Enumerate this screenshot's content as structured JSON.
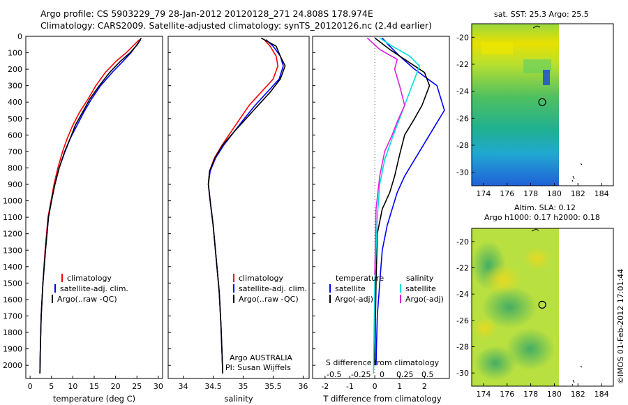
{
  "header": {
    "line1": "Argo profile: CS 5903229_79 28-Jan-2012 20120128_271 24.808S 178.974E",
    "line2": "Climatology: CARS2009. Satellite-adjusted climatology: synTS_20120126.nc (2.4d earlier)"
  },
  "colors": {
    "climatology": "#ff0000",
    "satellite": "#0000ff",
    "argo": "#000000",
    "salinity_satellite": "#00e0e0",
    "salinity_argo": "#e020e0"
  },
  "chart_data": [
    {
      "id": "temperature",
      "type": "line",
      "xlabel": "temperature (deg C)",
      "xlim": [
        -1,
        31
      ],
      "ylim": [
        2080,
        0
      ],
      "xticks": [
        0,
        5,
        10,
        15,
        20,
        25,
        30
      ],
      "yticks": [
        0,
        100,
        200,
        300,
        400,
        500,
        600,
        700,
        800,
        900,
        1000,
        1100,
        1200,
        1300,
        1400,
        1500,
        1600,
        1700,
        1800,
        1900,
        2000
      ],
      "legend": [
        "climatology",
        "satellite-adj. clim.",
        "Argo(..raw -QC)"
      ],
      "series": [
        {
          "name": "climatology",
          "color": "#ff0000",
          "x": [
            25.6,
            24.4,
            22.5,
            20.2,
            17.6,
            15.4,
            13.6,
            11.6,
            10.0,
            8.7,
            7.6,
            6.5,
            5.6,
            4.9,
            4.2,
            3.5,
            3.0,
            2.6,
            2.4,
            2.3
          ],
          "y": [
            20,
            50,
            100,
            150,
            220,
            300,
            380,
            460,
            540,
            620,
            700,
            800,
            900,
            1000,
            1100,
            1300,
            1500,
            1700,
            1900,
            2050
          ]
        },
        {
          "name": "satellite-adj. clim.",
          "color": "#0000ff",
          "x": [
            25.9,
            25.0,
            23.6,
            21.8,
            19.2,
            16.5,
            14.4,
            12.6,
            11.0,
            9.4,
            8.2,
            6.8,
            5.8,
            5.0,
            4.3,
            3.6,
            3.0,
            2.6,
            2.4,
            2.3
          ],
          "y": [
            20,
            50,
            100,
            150,
            220,
            300,
            380,
            460,
            540,
            620,
            700,
            800,
            900,
            1000,
            1100,
            1300,
            1500,
            1700,
            1900,
            2050
          ]
        },
        {
          "name": "Argo(..raw -QC)",
          "color": "#000000",
          "x": [
            26.0,
            25.1,
            23.4,
            21.2,
            18.6,
            16.2,
            14.0,
            12.3,
            10.6,
            9.4,
            8.1,
            6.8,
            5.8,
            5.0,
            4.3,
            3.6,
            3.0,
            2.6,
            2.4,
            2.3
          ],
          "y": [
            10,
            50,
            100,
            150,
            220,
            300,
            380,
            460,
            540,
            620,
            700,
            800,
            900,
            1000,
            1100,
            1300,
            1500,
            1700,
            1900,
            2050
          ]
        }
      ]
    },
    {
      "id": "salinity",
      "type": "line",
      "xlabel": "salinity",
      "xlim": [
        33.75,
        36.1
      ],
      "ylim": [
        2080,
        0
      ],
      "xticks": [
        34,
        34.5,
        35,
        35.5,
        36
      ],
      "legend": [
        "climatology",
        "satellite-adj. clim.",
        "Argo(..raw -QC)"
      ],
      "annotations": [
        "Argo AUSTRALIA",
        "PI: Susan Wijffels"
      ],
      "series": [
        {
          "name": "climatology",
          "color": "#ff0000",
          "x": [
            35.35,
            35.45,
            35.55,
            35.58,
            35.5,
            35.3,
            35.1,
            34.95,
            34.8,
            34.65,
            34.52,
            34.44,
            34.42,
            34.45,
            34.5,
            34.55,
            34.6,
            34.63,
            34.65,
            34.66
          ],
          "y": [
            20,
            60,
            120,
            180,
            260,
            340,
            420,
            500,
            580,
            660,
            740,
            820,
            900,
            1000,
            1150,
            1350,
            1550,
            1750,
            1950,
            2050
          ]
        },
        {
          "name": "satellite-adj. clim.",
          "color": "#0000ff",
          "x": [
            35.38,
            35.5,
            35.62,
            35.67,
            35.6,
            35.4,
            35.2,
            35.02,
            34.85,
            34.68,
            34.54,
            34.45,
            34.42,
            34.45,
            34.5,
            34.55,
            34.6,
            34.63,
            34.65,
            34.66
          ],
          "y": [
            20,
            60,
            120,
            180,
            260,
            340,
            420,
            500,
            580,
            660,
            740,
            820,
            900,
            1000,
            1150,
            1350,
            1550,
            1750,
            1950,
            2050
          ]
        },
        {
          "name": "Argo(..raw -QC)",
          "color": "#000000",
          "x": [
            35.3,
            35.55,
            35.62,
            35.7,
            35.62,
            35.45,
            35.25,
            35.05,
            34.85,
            34.66,
            34.53,
            34.44,
            34.42,
            34.45,
            34.5,
            34.55,
            34.6,
            34.63,
            34.65,
            34.66
          ],
          "y": [
            10,
            60,
            120,
            180,
            260,
            340,
            420,
            500,
            580,
            660,
            740,
            820,
            900,
            1000,
            1150,
            1350,
            1550,
            1750,
            1950,
            2050
          ]
        }
      ]
    },
    {
      "id": "difference",
      "type": "line",
      "xlabel": "T difference from climatology",
      "xlabel_top": "S difference from climatology",
      "xlim": [
        -2.5,
        3.0
      ],
      "ylim": [
        2080,
        0
      ],
      "xticks": [
        -2,
        -1,
        0,
        1,
        2
      ],
      "xticks_s": [
        "-0.5",
        "-0.25",
        "0",
        "0.25",
        "0.5"
      ],
      "legend_headers": [
        "temperature",
        "salinity"
      ],
      "legend": [
        "satellite",
        "Argo(-adj)",
        "satellite",
        "Argo(-adj)"
      ],
      "series": [
        {
          "name": "temperature satellite",
          "color": "#0000ff",
          "x": [
            0.3,
            0.6,
            1.0,
            1.6,
            2.5,
            2.8,
            2.4,
            2.0,
            1.6,
            1.2,
            0.9,
            0.7,
            0.5,
            0.3,
            0.2,
            0.1,
            0.05
          ],
          "y": [
            10,
            60,
            120,
            200,
            300,
            450,
            550,
            650,
            750,
            850,
            950,
            1050,
            1150,
            1300,
            1500,
            1700,
            2000
          ]
        },
        {
          "name": "temperature Argo(-adj)",
          "color": "#000000",
          "x": [
            0.0,
            0.6,
            1.3,
            2.0,
            2.2,
            1.9,
            1.6,
            1.2,
            1.0,
            0.8,
            0.6,
            0.3,
            0.1,
            0.05,
            0.0
          ],
          "y": [
            10,
            80,
            150,
            220,
            300,
            420,
            500,
            600,
            720,
            850,
            950,
            1050,
            1200,
            1500,
            2000
          ]
        },
        {
          "name": "salinity satellite",
          "color": "#00e0e0",
          "x": [
            0.2,
            0.7,
            1.4,
            1.8,
            1.6,
            1.3,
            1.0,
            0.7,
            0.4,
            0.2,
            0.1,
            0.0,
            -0.05
          ],
          "y": [
            10,
            60,
            120,
            180,
            260,
            380,
            500,
            620,
            750,
            900,
            1100,
            1500,
            2050
          ]
        },
        {
          "name": "salinity Argo(-adj)",
          "color": "#e020e0",
          "x": [
            -0.3,
            0.2,
            0.9,
            0.8,
            1.0,
            1.2,
            0.9,
            0.7,
            0.4,
            0.2,
            0.05,
            0.0
          ],
          "y": [
            10,
            80,
            140,
            200,
            300,
            420,
            520,
            600,
            700,
            850,
            1050,
            1450
          ]
        }
      ]
    },
    {
      "id": "sst-map",
      "type": "heatmap",
      "title": "sat. SST: 25.3 Argo: 25.5",
      "xlim": [
        173,
        185
      ],
      "ylim": [
        -31,
        -19
      ],
      "xticks": [
        174,
        176,
        178,
        180,
        182,
        184
      ],
      "yticks": [
        -20,
        -22,
        -24,
        -26,
        -28,
        -30
      ],
      "argo_position": [
        178.974,
        -24.808
      ]
    },
    {
      "id": "sla-map",
      "type": "heatmap",
      "title_line1": "Altim. SLA: 0.12",
      "title_line2": "Argo h1000: 0.17 h2000: 0.18",
      "xlim": [
        173,
        185
      ],
      "ylim": [
        -31,
        -19
      ],
      "xticks": [
        174,
        176,
        178,
        180,
        182,
        184
      ],
      "yticks": [
        -20,
        -22,
        -24,
        -26,
        -28,
        -30
      ],
      "argo_position": [
        178.974,
        -24.808
      ]
    }
  ],
  "footer": {
    "stamp": "©IMOS 01-Feb-2012 17:01:44"
  }
}
